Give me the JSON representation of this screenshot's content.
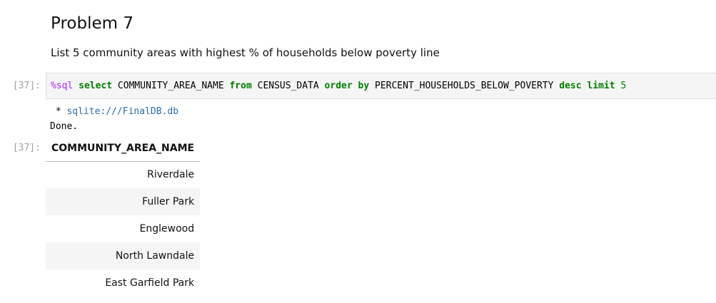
{
  "markdown": {
    "title": "Problem 7",
    "description": "List 5 community areas with highest % of households below poverty line"
  },
  "input_cell": {
    "prompt": "[37]:",
    "code_tokens": [
      {
        "text": "%sql",
        "type": "magic"
      },
      {
        "text": " ",
        "type": "plain"
      },
      {
        "text": "select",
        "type": "keyword"
      },
      {
        "text": " COMMUNITY_AREA_NAME ",
        "type": "plain"
      },
      {
        "text": "from",
        "type": "keyword"
      },
      {
        "text": " CENSUS_DATA ",
        "type": "plain"
      },
      {
        "text": "order",
        "type": "keyword"
      },
      {
        "text": " ",
        "type": "plain"
      },
      {
        "text": "by",
        "type": "keyword"
      },
      {
        "text": " PERCENT_HOUSEHOLDS_BELOW_POVERTY ",
        "type": "plain"
      },
      {
        "text": "desc",
        "type": "keyword"
      },
      {
        "text": " ",
        "type": "plain"
      },
      {
        "text": "limit",
        "type": "keyword"
      },
      {
        "text": " ",
        "type": "plain"
      },
      {
        "text": "5",
        "type": "number"
      }
    ]
  },
  "stream_output": {
    "bullet": " * ",
    "connection": "sqlite:///FinalDB.db",
    "done": "Done."
  },
  "output_cell": {
    "prompt": "[37]:",
    "table": {
      "header": "COMMUNITY_AREA_NAME",
      "rows": [
        "Riverdale",
        "Fuller Park",
        "Englewood",
        "North Lawndale",
        "East Garfield Park"
      ]
    }
  },
  "colors": {
    "keyword": "#008000",
    "magic": "#aa22ff",
    "link": "#296eaa",
    "prompt": "#a0a0a0",
    "cell_background": "#f5f5f5"
  }
}
